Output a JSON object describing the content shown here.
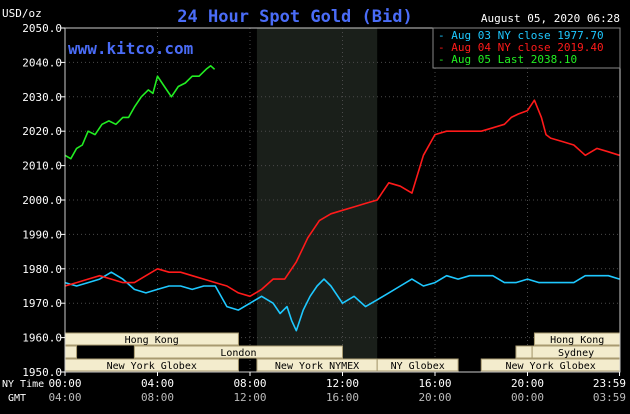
{
  "header": {
    "title": "24 Hour Spot Gold (Bid)",
    "units": "USD/oz",
    "timestamp": "August 05, 2020 06:28",
    "watermark": "www.kitco.com"
  },
  "colors": {
    "background": "#000000",
    "title": "#4a6cf7",
    "aug03": "#1ec8ff",
    "aug04": "#ff1a1a",
    "aug05": "#22ee22",
    "grid": "#4a4a4a",
    "shade": "#1a1f1a",
    "session_fill": "#f3eccd",
    "text": "#ffffff"
  },
  "legend": [
    {
      "series": "aug03",
      "text": "Aug 03 NY close 1977.70"
    },
    {
      "series": "aug04",
      "text": "Aug 04 NY close 2019.40"
    },
    {
      "series": "aug05",
      "text": "Aug 05 Last 2038.10"
    }
  ],
  "sessions": [
    {
      "label": "Hong Kong",
      "start": 0,
      "end": 7.5
    },
    {
      "label": "Hong Kong",
      "start": 20.3,
      "end": 24
    },
    {
      "label": "",
      "start": 0,
      "end": 0.5
    },
    {
      "label": "London",
      "start": 3,
      "end": 12
    },
    {
      "label": "",
      "start": 19.5,
      "end": 20.2
    },
    {
      "label": "Sydney",
      "start": 20.2,
      "end": 24
    },
    {
      "label": "New York Globex",
      "start": 0,
      "end": 7.5
    },
    {
      "label": "New York NYMEX",
      "start": 8.3,
      "end": 13.5
    },
    {
      "label": "NY Globex",
      "start": 13.5,
      "end": 17
    },
    {
      "label": "New York Globex",
      "start": 18,
      "end": 24
    }
  ],
  "footer": {
    "ny_label": "NY Time",
    "gmt_label": "GMT",
    "ny_ticks": [
      "00:00",
      "04:00",
      "08:00",
      "12:00",
      "16:00",
      "20:00",
      "23:59"
    ],
    "gmt_ticks": [
      "04:00",
      "08:00",
      "12:00",
      "16:00",
      "20:00",
      "00:00",
      "03:59"
    ]
  },
  "chart_data": {
    "type": "line",
    "title": "24 Hour Spot Gold (Bid)",
    "ylabel": "USD/oz",
    "xlabel": "NY Time",
    "xlim": [
      0,
      24
    ],
    "ylim": [
      1950,
      2050
    ],
    "yticks": [
      1950,
      1960,
      1970,
      1980,
      1990,
      2000,
      2010,
      2020,
      2030,
      2040,
      2050
    ],
    "ytick_labels": [
      "1950.0",
      "1960.0",
      "1970.0",
      "1980.0",
      "1990.0",
      "2000.0",
      "2010.0",
      "2020.0",
      "2030.0",
      "2040.0",
      "2050.0"
    ],
    "shaded_range": [
      8.3,
      13.5
    ],
    "grid": true,
    "series": [
      {
        "key": "aug03",
        "name": "Aug 03 NY close 1977.70",
        "x": [
          0,
          0.5,
          1,
          1.5,
          2,
          2.5,
          3,
          3.5,
          4,
          4.5,
          5,
          5.5,
          6,
          6.5,
          7,
          7.5,
          8,
          8.5,
          9,
          9.3,
          9.6,
          9.8,
          10,
          10.3,
          10.6,
          10.9,
          11.2,
          11.5,
          12,
          12.5,
          13,
          13.5,
          14,
          14.5,
          15,
          15.5,
          16,
          16.5,
          17,
          17.5,
          18,
          18.5,
          19,
          19.5,
          20,
          20.5,
          21,
          21.5,
          22,
          22.5,
          23,
          23.5,
          23.98
        ],
        "y": [
          1976,
          1975,
          1976,
          1977,
          1979,
          1977,
          1974,
          1973,
          1974,
          1975,
          1975,
          1974,
          1975,
          1975,
          1969,
          1968,
          1970,
          1972,
          1970,
          1967,
          1969,
          1965,
          1962,
          1968,
          1972,
          1975,
          1977,
          1975,
          1970,
          1972,
          1969,
          1971,
          1973,
          1975,
          1977,
          1975,
          1976,
          1978,
          1977,
          1978,
          1978,
          1978,
          1976,
          1976,
          1977,
          1976,
          1976,
          1976,
          1976,
          1978,
          1978,
          1978,
          1977
        ]
      },
      {
        "key": "aug04",
        "name": "Aug 04 NY close 2019.40",
        "x": [
          0,
          0.5,
          1,
          1.5,
          2,
          2.5,
          3,
          3.5,
          4,
          4.5,
          5,
          5.5,
          6,
          6.5,
          7,
          7.5,
          8,
          8.5,
          9,
          9.5,
          10,
          10.5,
          11,
          11.5,
          12,
          12.5,
          13,
          13.5,
          14,
          14.5,
          15,
          15.5,
          16,
          16.5,
          17,
          17.5,
          18,
          18.5,
          19,
          19.3,
          19.6,
          20,
          20.3,
          20.6,
          20.8,
          21,
          21.5,
          22,
          22.5,
          23,
          23.5,
          23.98
        ],
        "y": [
          1975,
          1976,
          1977,
          1978,
          1977,
          1976,
          1976,
          1978,
          1980,
          1979,
          1979,
          1978,
          1977,
          1976,
          1975,
          1973,
          1972,
          1974,
          1977,
          1977,
          1982,
          1989,
          1994,
          1996,
          1997,
          1998,
          1999,
          2000,
          2005,
          2004,
          2002,
          2013,
          2019,
          2020,
          2020,
          2020,
          2020,
          2021,
          2022,
          2024,
          2025,
          2026,
          2029,
          2024,
          2019,
          2018,
          2017,
          2016,
          2013,
          2015,
          2014,
          2013
        ]
      },
      {
        "key": "aug05",
        "name": "Aug 05 Last 2038.10",
        "x": [
          0,
          0.25,
          0.5,
          0.75,
          1,
          1.3,
          1.6,
          1.9,
          2.2,
          2.5,
          2.75,
          3,
          3.3,
          3.6,
          3.8,
          4,
          4.3,
          4.6,
          4.9,
          5.2,
          5.5,
          5.8,
          6.1,
          6.3,
          6.47
        ],
        "y": [
          2013,
          2012,
          2015,
          2016,
          2020,
          2019,
          2022,
          2023,
          2022,
          2024,
          2024,
          2027,
          2030,
          2032,
          2031,
          2036,
          2033,
          2030,
          2033,
          2034,
          2036,
          2036,
          2038,
          2039,
          2038
        ]
      }
    ]
  }
}
